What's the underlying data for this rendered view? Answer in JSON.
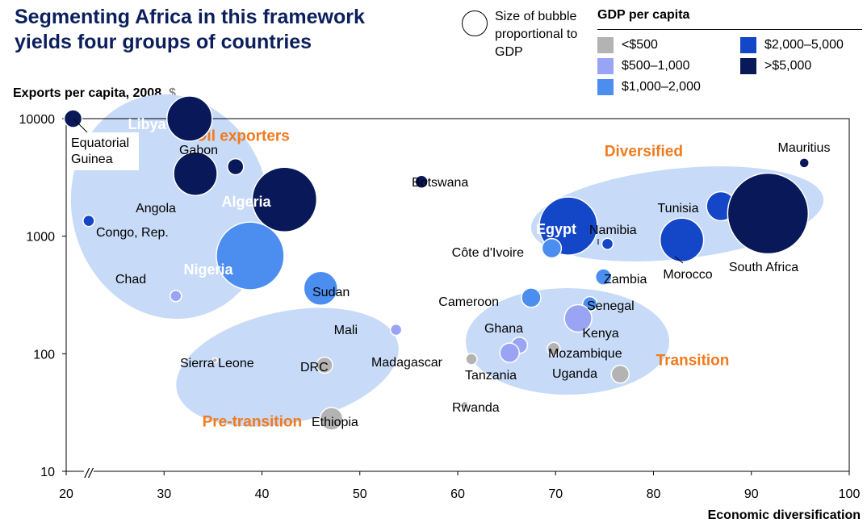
{
  "title_line1": "Segmenting Africa in this framework",
  "title_line2": "yields four groups of countries",
  "size_key": "Size of bubble proportional to GDP",
  "legend": {
    "title": "GDP per capita",
    "items": [
      {
        "label": "<$500",
        "color": "#b3b3b3"
      },
      {
        "label": "$500–1,000",
        "color": "#9aa4f5"
      },
      {
        "label": "$1,000–2,000",
        "color": "#4b8ef0"
      },
      {
        "label": "$2,000–5,000",
        "color": "#1446c8"
      },
      {
        "label": ">$5,000",
        "color": "#081858"
      }
    ]
  },
  "chart_data": {
    "type": "scatter",
    "title": "Segmenting Africa in this framework yields four groups of countries",
    "xlabel": "Economic diversification",
    "ylabel": "Exports per capita, 2008,",
    "ylabel_unit": "$",
    "x_ticks": [
      20,
      30,
      40,
      50,
      60,
      70,
      80,
      90,
      100
    ],
    "xlim": [
      20,
      100
    ],
    "y_ticks": [
      10,
      100,
      1000,
      10000
    ],
    "y_tick_labels": [
      "10",
      "100",
      "1000",
      "10000"
    ],
    "ylim": [
      10,
      10000
    ],
    "y_scale": "log",
    "axis_break": "//",
    "groups": [
      {
        "name": "Oil exporters",
        "label_x": 38,
        "label_y": 6500
      },
      {
        "name": "Diversified",
        "label_x": 79,
        "label_y": 4800
      },
      {
        "name": "Transition",
        "label_x": 84,
        "label_y": 80
      },
      {
        "name": "Pre-transition",
        "label_x": 39,
        "label_y": 24
      }
    ],
    "points": [
      {
        "name": "Equatorial Guinea",
        "x": 20.7,
        "y": 10000,
        "size": 11,
        "tier": 4
      },
      {
        "name": "Libya",
        "x": 32.6,
        "y": 10000,
        "size": 28,
        "tier": 4
      },
      {
        "name": "Gabon",
        "x": 37.3,
        "y": 3900,
        "size": 10,
        "tier": 4
      },
      {
        "name": "Angola",
        "x": 33.2,
        "y": 3400,
        "size": 27,
        "tier": 4
      },
      {
        "name": "Algeria",
        "x": 42.3,
        "y": 2050,
        "size": 40,
        "tier": 4
      },
      {
        "name": "Congo, Rep.",
        "x": 22.3,
        "y": 1350,
        "size": 7,
        "tier": 3
      },
      {
        "name": "Nigeria",
        "x": 38.8,
        "y": 680,
        "size": 42,
        "tier": 2
      },
      {
        "name": "Chad",
        "x": 31.2,
        "y": 310,
        "size": 7,
        "tier": 1
      },
      {
        "name": "Sudan",
        "x": 46.0,
        "y": 360,
        "size": 21,
        "tier": 2
      },
      {
        "name": "Botswana",
        "x": 56.3,
        "y": 2900,
        "size": 8,
        "tier": 4
      },
      {
        "name": "Mali",
        "x": 53.7,
        "y": 160,
        "size": 7,
        "tier": 1
      },
      {
        "name": "Sierra Leone",
        "x": 35.2,
        "y": 88,
        "size": 3,
        "tier": 0
      },
      {
        "name": "DRC",
        "x": 46.4,
        "y": 80,
        "size": 10,
        "tier": 0
      },
      {
        "name": "Ethiopia",
        "x": 47.1,
        "y": 28,
        "size": 14,
        "tier": 0
      },
      {
        "name": "Madagascar",
        "x": 61.4,
        "y": 90,
        "size": 7,
        "tier": 0
      },
      {
        "name": "Rwanda",
        "x": 60.7,
        "y": 37,
        "size": 4,
        "tier": 0
      },
      {
        "name": "Egypt",
        "x": 71.3,
        "y": 1220,
        "size": 36,
        "tier": 3
      },
      {
        "name": "Côte d'Ivoire",
        "x": 69.6,
        "y": 790,
        "size": 12,
        "tier": 2
      },
      {
        "name": "Namibia",
        "x": 75.3,
        "y": 860,
        "size": 7,
        "tier": 3
      },
      {
        "name": "Tunisia",
        "x": 86.9,
        "y": 1800,
        "size": 18,
        "tier": 3
      },
      {
        "name": "Morocco",
        "x": 82.9,
        "y": 930,
        "size": 27,
        "tier": 3
      },
      {
        "name": "South Africa",
        "x": 91.7,
        "y": 1560,
        "size": 50,
        "tier": 4
      },
      {
        "name": "Mauritius",
        "x": 95.4,
        "y": 4200,
        "size": 6,
        "tier": 4
      },
      {
        "name": "Zambia",
        "x": 74.9,
        "y": 450,
        "size": 10,
        "tier": 2
      },
      {
        "name": "Cameroon",
        "x": 67.5,
        "y": 300,
        "size": 12,
        "tier": 2
      },
      {
        "name": "Senegal",
        "x": 73.5,
        "y": 265,
        "size": 9,
        "tier": 2
      },
      {
        "name": "Kenya",
        "x": 72.3,
        "y": 200,
        "size": 17,
        "tier": 1
      },
      {
        "name": "Ghana",
        "x": 66.3,
        "y": 118,
        "size": 10,
        "tier": 1
      },
      {
        "name": "Tanzania",
        "x": 65.3,
        "y": 102,
        "size": 12,
        "tier": 1
      },
      {
        "name": "Mozambique",
        "x": 69.8,
        "y": 110,
        "size": 8,
        "tier": 0
      },
      {
        "name": "Uganda",
        "x": 76.6,
        "y": 67,
        "size": 11,
        "tier": 0
      }
    ]
  }
}
